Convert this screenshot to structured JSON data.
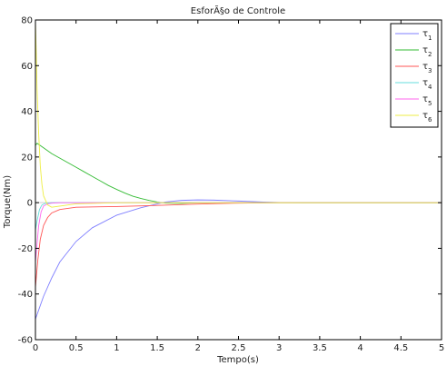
{
  "chart_data": {
    "type": "line",
    "title": "EsforÃ§o de Controle",
    "xlabel": "Tempo(s)",
    "ylabel": "Torque(Nm)",
    "xlim": [
      0,
      5
    ],
    "ylim": [
      -60,
      80
    ],
    "xticks": [
      0,
      0.5,
      1,
      1.5,
      2,
      2.5,
      3,
      3.5,
      4,
      4.5,
      5
    ],
    "yticks": [
      -60,
      -40,
      -20,
      0,
      20,
      40,
      60,
      80
    ],
    "xtick_labels": [
      "0",
      "0.5",
      "1",
      "1.5",
      "2",
      "2.5",
      "3",
      "3.5",
      "4",
      "4.5",
      "5"
    ],
    "ytick_labels": [
      "-60",
      "-40",
      "-20",
      "0",
      "20",
      "40",
      "60",
      "80"
    ],
    "grid": false,
    "legend_position": "top-right",
    "series": [
      {
        "name": "τ1",
        "base": "τ",
        "sub": "1",
        "color": "#7f7fff",
        "x": [
          0,
          0.05,
          0.1,
          0.2,
          0.3,
          0.5,
          0.7,
          1.0,
          1.3,
          1.6,
          1.8,
          2.0,
          2.2,
          2.5,
          2.8,
          3.0,
          3.3
        ],
        "y": [
          -51,
          -46,
          -41,
          -33,
          -26,
          -17,
          -11,
          -5.5,
          -2.2,
          0.3,
          1.0,
          1.2,
          1.1,
          0.7,
          0.3,
          0.1,
          0
        ]
      },
      {
        "name": "τ2",
        "base": "τ",
        "sub": "2",
        "color": "#33bb33",
        "x": [
          0,
          0.02,
          0.1,
          0.2,
          0.3,
          0.4,
          0.5,
          0.6,
          0.7,
          0.8,
          0.9,
          1.0,
          1.1,
          1.2,
          1.3,
          1.4,
          1.5,
          1.6,
          1.8,
          2.0
        ],
        "y": [
          25,
          26,
          24,
          21.5,
          19.5,
          17.5,
          15.5,
          13.5,
          11.5,
          9.5,
          7.5,
          5.8,
          4.2,
          2.8,
          1.8,
          1.0,
          0.3,
          -0.2,
          -0.3,
          0
        ]
      },
      {
        "name": "τ3",
        "base": "τ",
        "sub": "3",
        "color": "#ff5555",
        "x": [
          0,
          0.03,
          0.06,
          0.1,
          0.15,
          0.2,
          0.3,
          0.5,
          0.8,
          1.0,
          1.5,
          2.0,
          2.5,
          3.0,
          3.3
        ],
        "y": [
          -37,
          -25,
          -16,
          -10,
          -6.5,
          -4.5,
          -3,
          -2,
          -1.8,
          -1.7,
          -1.2,
          -0.6,
          -0.2,
          0,
          0
        ]
      },
      {
        "name": "τ4",
        "base": "τ",
        "sub": "4",
        "color": "#66dddd",
        "x": [
          0,
          0.02,
          0.05,
          0.08,
          0.12,
          0.2,
          0.4,
          1.0,
          2.0
        ],
        "y": [
          -12,
          -8,
          -3,
          -1,
          -0.3,
          0,
          0,
          0,
          0
        ]
      },
      {
        "name": "τ5",
        "base": "τ",
        "sub": "5",
        "color": "#ff66ee",
        "x": [
          0,
          0.02,
          0.04,
          0.07,
          0.1,
          0.15,
          0.2,
          0.3,
          0.5,
          1.0
        ],
        "y": [
          -26,
          -18,
          -10,
          -4,
          -1.5,
          -0.5,
          -0.2,
          0,
          0,
          0
        ]
      },
      {
        "name": "τ6",
        "base": "τ",
        "sub": "6",
        "color": "#eeee44",
        "x": [
          0,
          0.01,
          0.02,
          0.04,
          0.06,
          0.08,
          0.1,
          0.15,
          0.2,
          0.3,
          0.5,
          1.0
        ],
        "y": [
          79,
          66,
          50,
          30,
          16,
          8,
          3,
          -1,
          -2,
          -1.5,
          -0.5,
          0
        ]
      }
    ]
  }
}
